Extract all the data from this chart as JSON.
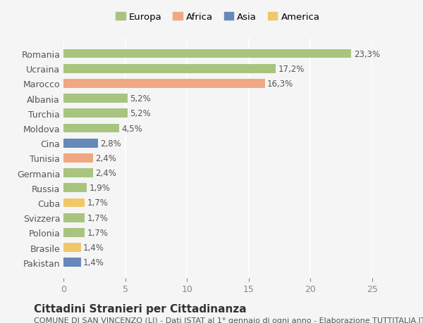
{
  "countries": [
    "Romania",
    "Ucraina",
    "Marocco",
    "Albania",
    "Turchia",
    "Moldova",
    "Cina",
    "Tunisia",
    "Germania",
    "Russia",
    "Cuba",
    "Svizzera",
    "Polonia",
    "Brasile",
    "Pakistan"
  ],
  "values": [
    23.3,
    17.2,
    16.3,
    5.2,
    5.2,
    4.5,
    2.8,
    2.4,
    2.4,
    1.9,
    1.7,
    1.7,
    1.7,
    1.4,
    1.4
  ],
  "labels": [
    "23,3%",
    "17,2%",
    "16,3%",
    "5,2%",
    "5,2%",
    "4,5%",
    "2,8%",
    "2,4%",
    "2,4%",
    "1,9%",
    "1,7%",
    "1,7%",
    "1,7%",
    "1,4%",
    "1,4%"
  ],
  "continents": [
    "Europa",
    "Europa",
    "Africa",
    "Europa",
    "Europa",
    "Europa",
    "Asia",
    "Africa",
    "Europa",
    "Europa",
    "America",
    "Europa",
    "Europa",
    "America",
    "Asia"
  ],
  "colors": {
    "Europa": "#a8c47f",
    "Africa": "#f0a882",
    "Asia": "#6688bb",
    "America": "#f0c86a"
  },
  "legend_order": [
    "Europa",
    "Africa",
    "Asia",
    "America"
  ],
  "xlim": [
    0,
    25
  ],
  "xticks": [
    0,
    5,
    10,
    15,
    20,
    25
  ],
  "title": "Cittadini Stranieri per Cittadinanza",
  "subtitle": "COMUNE DI SAN VINCENZO (LI) - Dati ISTAT al 1° gennaio di ogni anno - Elaborazione TUTTITALIA.IT",
  "background_color": "#f5f5f5",
  "bar_height": 0.6,
  "label_fontsize": 8.5,
  "title_fontsize": 11,
  "subtitle_fontsize": 8
}
